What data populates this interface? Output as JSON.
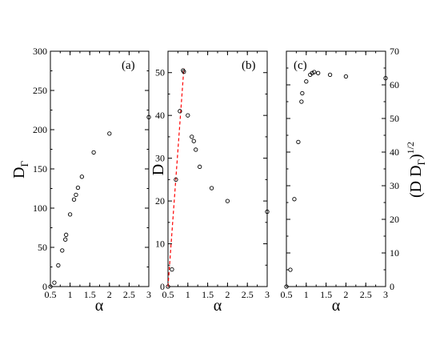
{
  "chart_data": [
    {
      "type": "scatter",
      "panel_label": "(a)",
      "xlabel": "α",
      "ylabel": "D",
      "ylabel_sub": "Γ",
      "xlim": [
        0.5,
        3
      ],
      "ylim": [
        0,
        300
      ],
      "xticks": [
        0.5,
        1,
        1.5,
        2,
        2.5,
        3
      ],
      "xtick_labels": [
        "0.5",
        "1",
        "1.5",
        "2",
        "2.5",
        "3"
      ],
      "yticks": [
        0,
        50,
        100,
        150,
        200,
        250,
        300
      ],
      "ytick_labels": [
        "0",
        "50",
        "100",
        "150",
        "200",
        "250",
        "300"
      ],
      "series": [
        {
          "x": [
            0.5,
            0.6,
            0.7,
            0.8,
            0.88,
            0.9,
            1.0,
            1.1,
            1.15,
            1.2,
            1.3,
            1.6,
            2.0,
            3.0
          ],
          "y": [
            0,
            5,
            27,
            46,
            60,
            66,
            92,
            111,
            117,
            126,
            140,
            171,
            195,
            216
          ]
        }
      ]
    },
    {
      "type": "scatter",
      "panel_label": "(b)",
      "xlabel": "α",
      "ylabel": "D",
      "xlim": [
        0.5,
        3
      ],
      "ylim": [
        0,
        55
      ],
      "xticks": [
        0.5,
        1,
        1.5,
        2,
        2.5,
        3
      ],
      "xtick_labels": [
        "0.5",
        "1",
        "1.5",
        "2",
        "2.5",
        "3"
      ],
      "yticks": [
        0,
        10,
        20,
        30,
        40,
        50
      ],
      "ytick_labels": [
        "0",
        "10",
        "20",
        "30",
        "40",
        "50"
      ],
      "series": [
        {
          "x": [
            0.5,
            0.6,
            0.7,
            0.8,
            0.88,
            0.9,
            1.0,
            1.1,
            1.15,
            1.2,
            1.3,
            1.6,
            2.0,
            3.0
          ],
          "y": [
            0,
            4,
            25,
            41,
            50.5,
            50.2,
            40,
            35,
            34,
            32,
            28,
            23,
            20,
            17.5
          ]
        }
      ],
      "fit_line": {
        "x": [
          0.5,
          0.9
        ],
        "y": [
          0,
          51
        ]
      }
    },
    {
      "type": "scatter",
      "panel_label": "(c)",
      "xlabel": "α",
      "ylabel": "(D D",
      "ylabel_sub": "Γ",
      "ylabel_close": ")",
      "ylabel_sup": "1/2",
      "xlim": [
        0.5,
        3
      ],
      "ylim": [
        0,
        70
      ],
      "xticks": [
        0.5,
        1,
        1.5,
        2,
        2.5,
        3
      ],
      "xtick_labels": [
        "0.5",
        "1",
        "1.5",
        "2",
        "2.5",
        "3"
      ],
      "yticks": [
        0,
        10,
        20,
        30,
        40,
        50,
        60,
        70
      ],
      "ytick_labels": [
        "0",
        "10",
        "20",
        "30",
        "40",
        "50",
        "60",
        "70"
      ],
      "series": [
        {
          "x": [
            0.5,
            0.6,
            0.7,
            0.8,
            0.88,
            0.9,
            1.0,
            1.1,
            1.15,
            1.2,
            1.3,
            1.6,
            2.0,
            3.0
          ],
          "y": [
            0,
            5,
            26,
            43,
            55,
            57.5,
            61,
            63,
            63.5,
            63.8,
            63.5,
            63,
            62.5,
            62
          ]
        }
      ]
    }
  ]
}
